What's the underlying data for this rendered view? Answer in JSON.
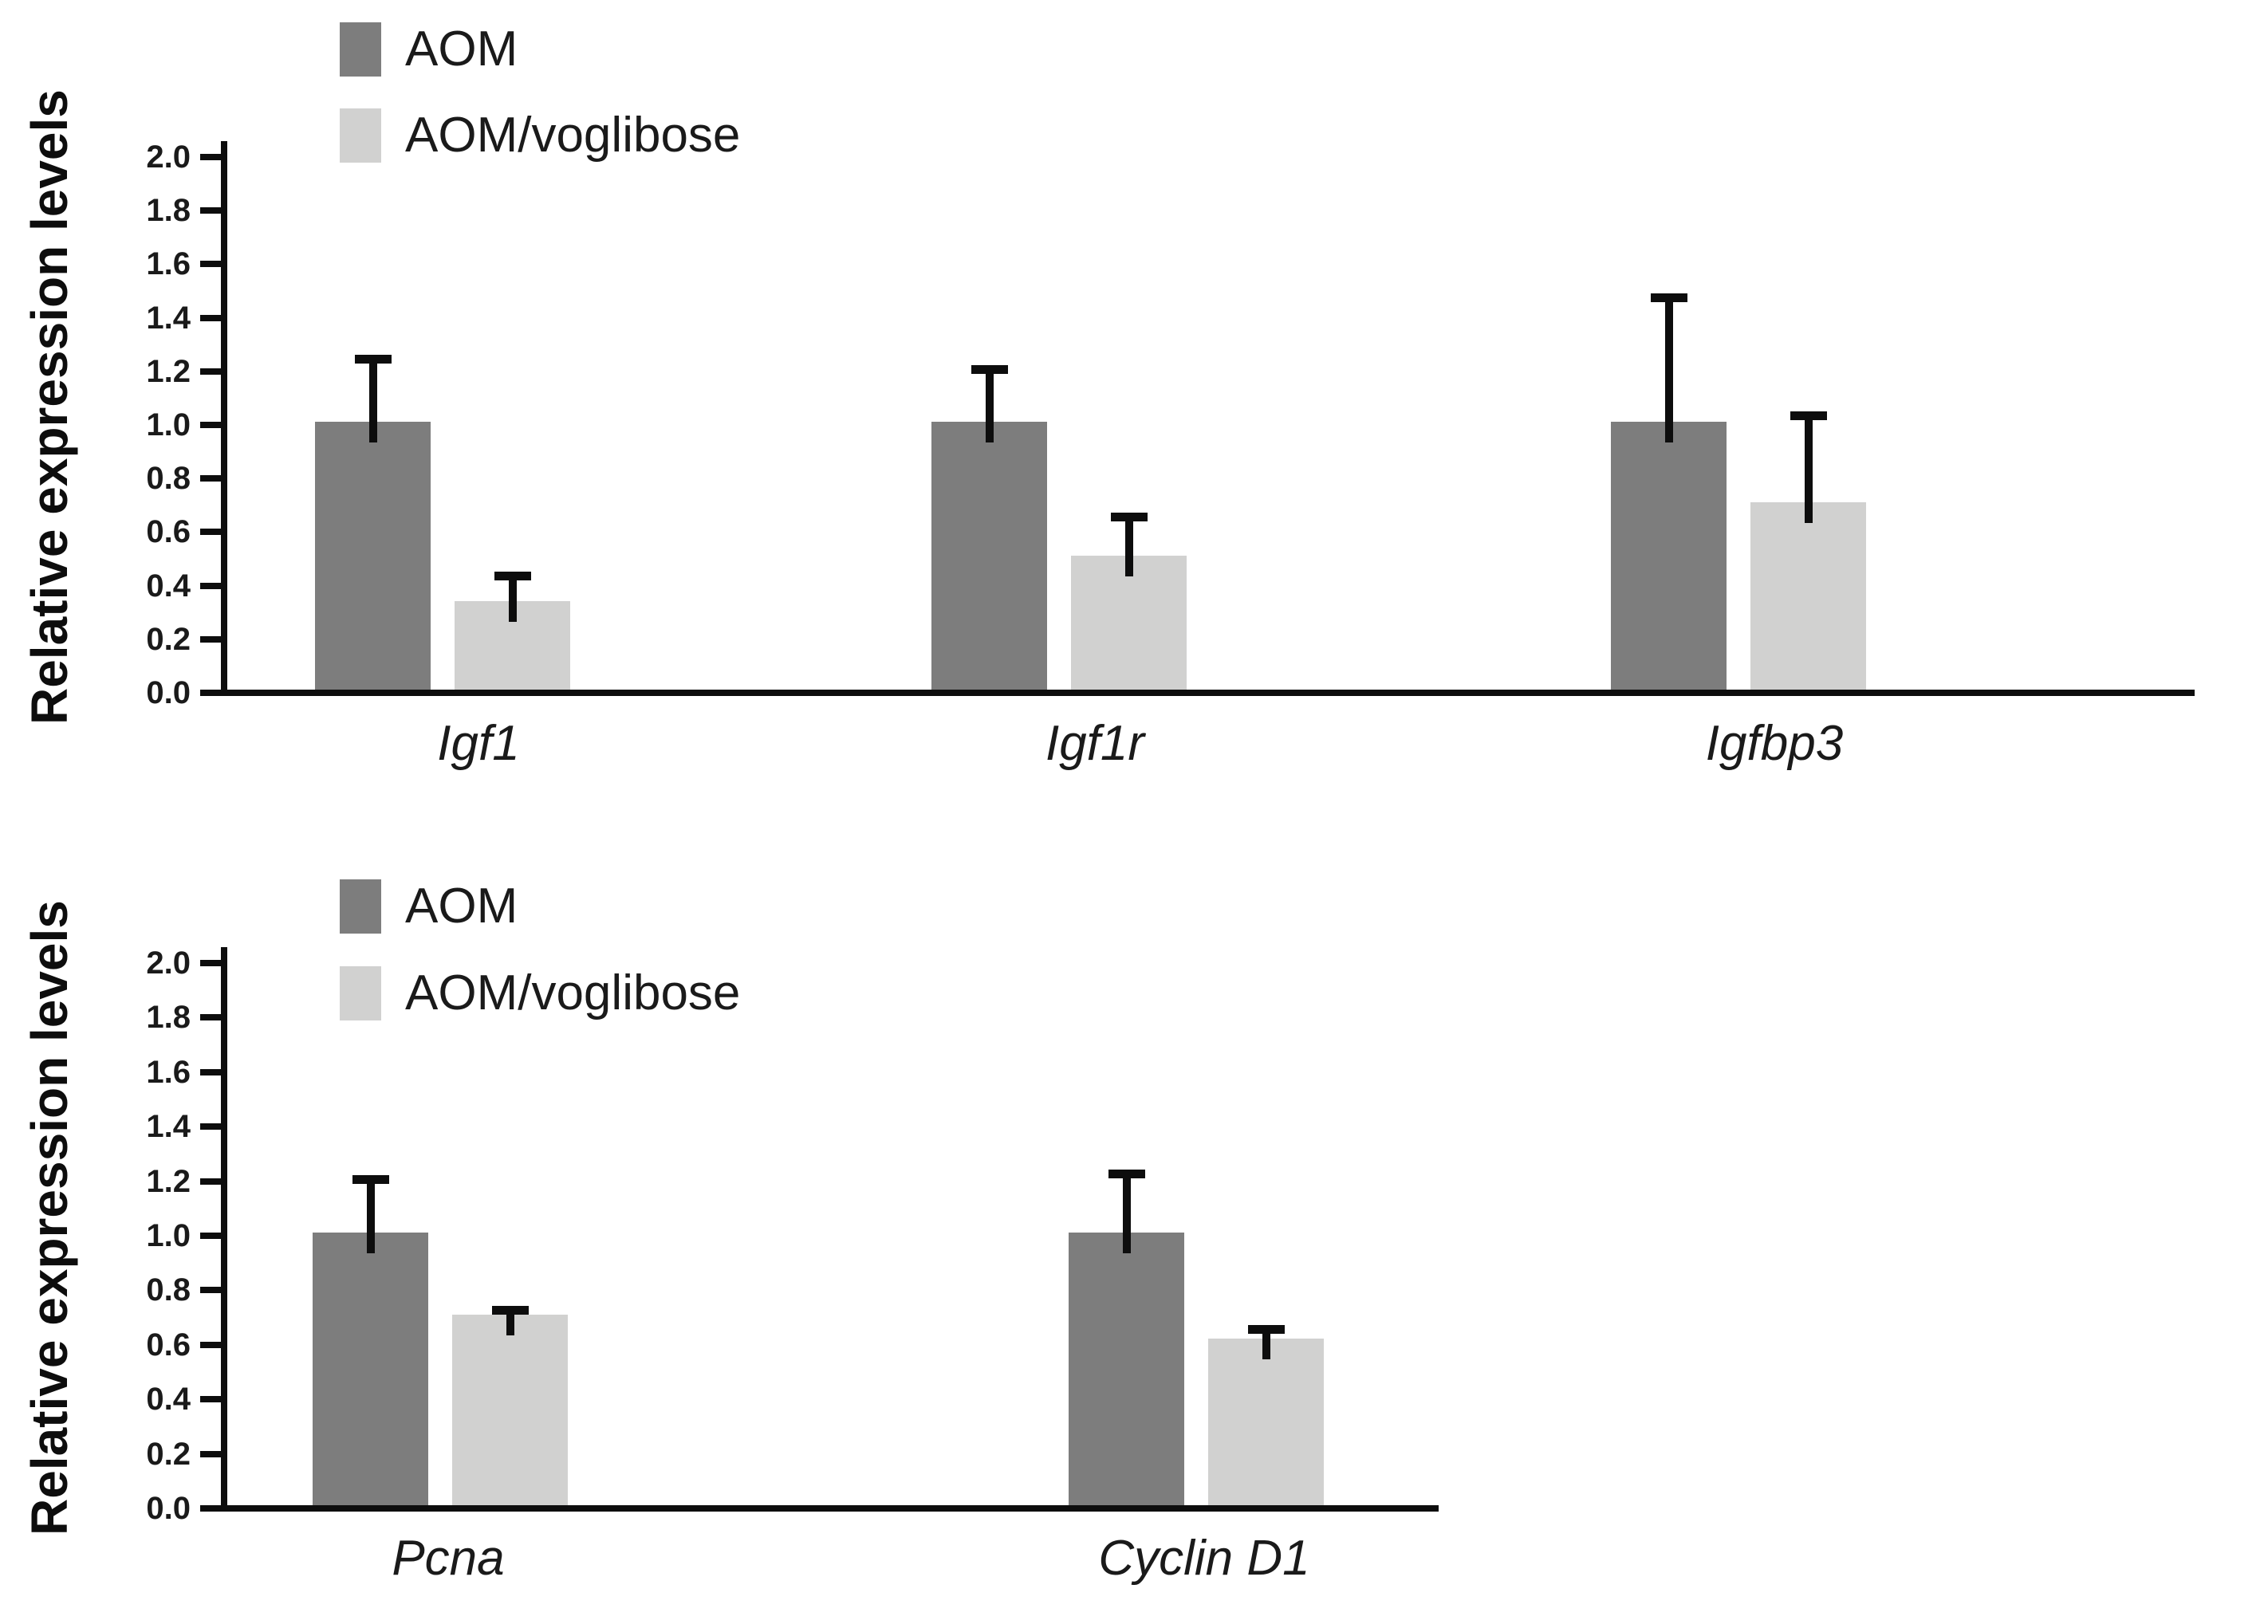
{
  "figure": {
    "background": "#ffffff",
    "text_color": "#1a1a1a",
    "axis_color": "#0d0d0d"
  },
  "chart_data": [
    {
      "type": "bar",
      "title": "",
      "xlabel": "",
      "ylabel": "Relative expression levels",
      "categories": [
        "Igf1",
        "Igf1r",
        "Igfbp3"
      ],
      "series": [
        {
          "name": "AOM",
          "color": "#7d7d7d",
          "values": [
            1.0,
            1.0,
            1.0
          ],
          "upper_errors": [
            0.25,
            0.21,
            0.48
          ]
        },
        {
          "name": "AOM/voglibose",
          "color": "#d1d1d0",
          "values": [
            0.33,
            0.5,
            0.7
          ],
          "upper_errors": [
            0.11,
            0.16,
            0.34
          ]
        }
      ],
      "ylim": [
        0,
        2
      ],
      "ytick_step": 0.2,
      "yticks": [
        "2.0",
        "1.8",
        "1.6",
        "1.4",
        "1.2",
        "1.0",
        "0.8",
        "0.6",
        "0.4",
        "0.2",
        "0.0"
      ],
      "grid": false,
      "error_bars": "upper-only",
      "legend_position": "inside-top-left",
      "category_style": "italic"
    },
    {
      "type": "bar",
      "title": "",
      "xlabel": "",
      "ylabel": "Relative expression levels",
      "categories": [
        "Pcna",
        "Cyclin D1"
      ],
      "series": [
        {
          "name": "AOM",
          "color": "#7d7d7d",
          "values": [
            1.0,
            1.0
          ],
          "upper_errors": [
            0.21,
            0.23
          ]
        },
        {
          "name": "AOM/voglibose",
          "color": "#d1d1d0",
          "values": [
            0.7,
            0.61
          ],
          "upper_errors": [
            0.03,
            0.05
          ]
        }
      ],
      "ylim": [
        0,
        2
      ],
      "ytick_step": 0.2,
      "yticks": [
        "2.0",
        "1.8",
        "1.6",
        "1.4",
        "1.2",
        "1.0",
        "0.8",
        "0.6",
        "0.4",
        "0.2",
        "0.0"
      ],
      "grid": false,
      "error_bars": "upper-only",
      "legend_position": "inside-top-left",
      "category_style": "italic"
    }
  ]
}
